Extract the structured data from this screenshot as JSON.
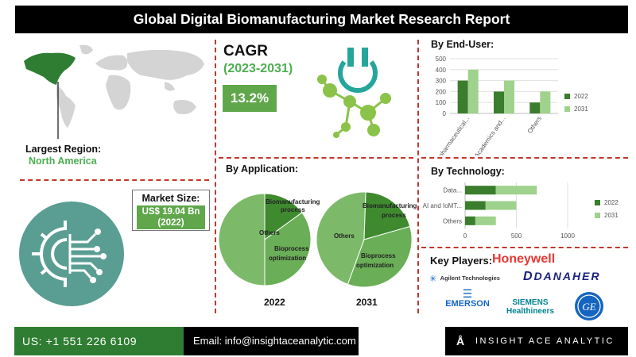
{
  "title": "Global Digital Biomanufacturing Market Research Report",
  "region": {
    "label": "Largest Region:",
    "value": "North America"
  },
  "market_size": {
    "label": "Market Size:",
    "value": "US$ 19.04 Bn",
    "year": "(2022)"
  },
  "cagr": {
    "label": "CAGR",
    "period": "(2023-2031)",
    "value": "13.2%"
  },
  "application": {
    "title": "By Application:",
    "labels": {
      "biomanufacturing": "Biomanufacturing process",
      "bioprocess": "Bioprocess optimization",
      "others": "Others"
    }
  },
  "end_user": {
    "title": "By End-User:"
  },
  "technology": {
    "title": "By Technology:"
  },
  "key_players": {
    "title": "Key Players:",
    "logos": [
      "Honeywell",
      "Agilent Technologies",
      "DANAHER",
      "EMERSON",
      "SIEMENS Healthineers",
      "GE"
    ]
  },
  "footer": {
    "phone": "US: +1 551 226 6109",
    "email": "Email: info@insightaceanalytic.com",
    "brand": "INSIGHT ACE ANALYTIC"
  },
  "colors": {
    "dark_green": "#3a7d2c",
    "light_green": "#9fd28c",
    "mid_green": "#5fa74a",
    "pie_light": "#7cba6a",
    "pie_mid": "#6aae57",
    "pie_dark": "#3f8a2f",
    "accent_red": "#c0392b"
  },
  "chart_data": [
    {
      "type": "bar",
      "title": "By End-User:",
      "categories": [
        "Biopharmaceutical...",
        "Academics and...",
        "Others"
      ],
      "series": [
        {
          "name": "2022",
          "values": [
            300,
            200,
            100
          ]
        },
        {
          "name": "2031",
          "values": [
            400,
            300,
            200
          ]
        }
      ],
      "ylim": [
        0,
        500
      ],
      "yticks": [
        0,
        100,
        200,
        300,
        400,
        500
      ],
      "legend": "right"
    },
    {
      "type": "bar",
      "orientation": "horizontal",
      "title": "By Technology:",
      "categories": [
        "Data...",
        "AI and IoMT...",
        "Others"
      ],
      "series": [
        {
          "name": "2022",
          "values": [
            300,
            200,
            100
          ]
        },
        {
          "name": "2031",
          "values": [
            400,
            300,
            200
          ]
        }
      ],
      "xlim": [
        0,
        1000
      ],
      "xticks": [
        0,
        500,
        1000
      ],
      "legend": "right"
    },
    {
      "type": "pie",
      "title": "2022",
      "slices": [
        {
          "label": "Others",
          "value": 50
        },
        {
          "label": "Biomanufacturing process",
          "value": 15
        },
        {
          "label": "Bioprocess optimization",
          "value": 35
        }
      ]
    },
    {
      "type": "pie",
      "title": "2031",
      "slices": [
        {
          "label": "Others",
          "value": 45
        },
        {
          "label": "Biomanufacturing process",
          "value": 20
        },
        {
          "label": "Bioprocess optimization",
          "value": 35
        }
      ]
    }
  ]
}
